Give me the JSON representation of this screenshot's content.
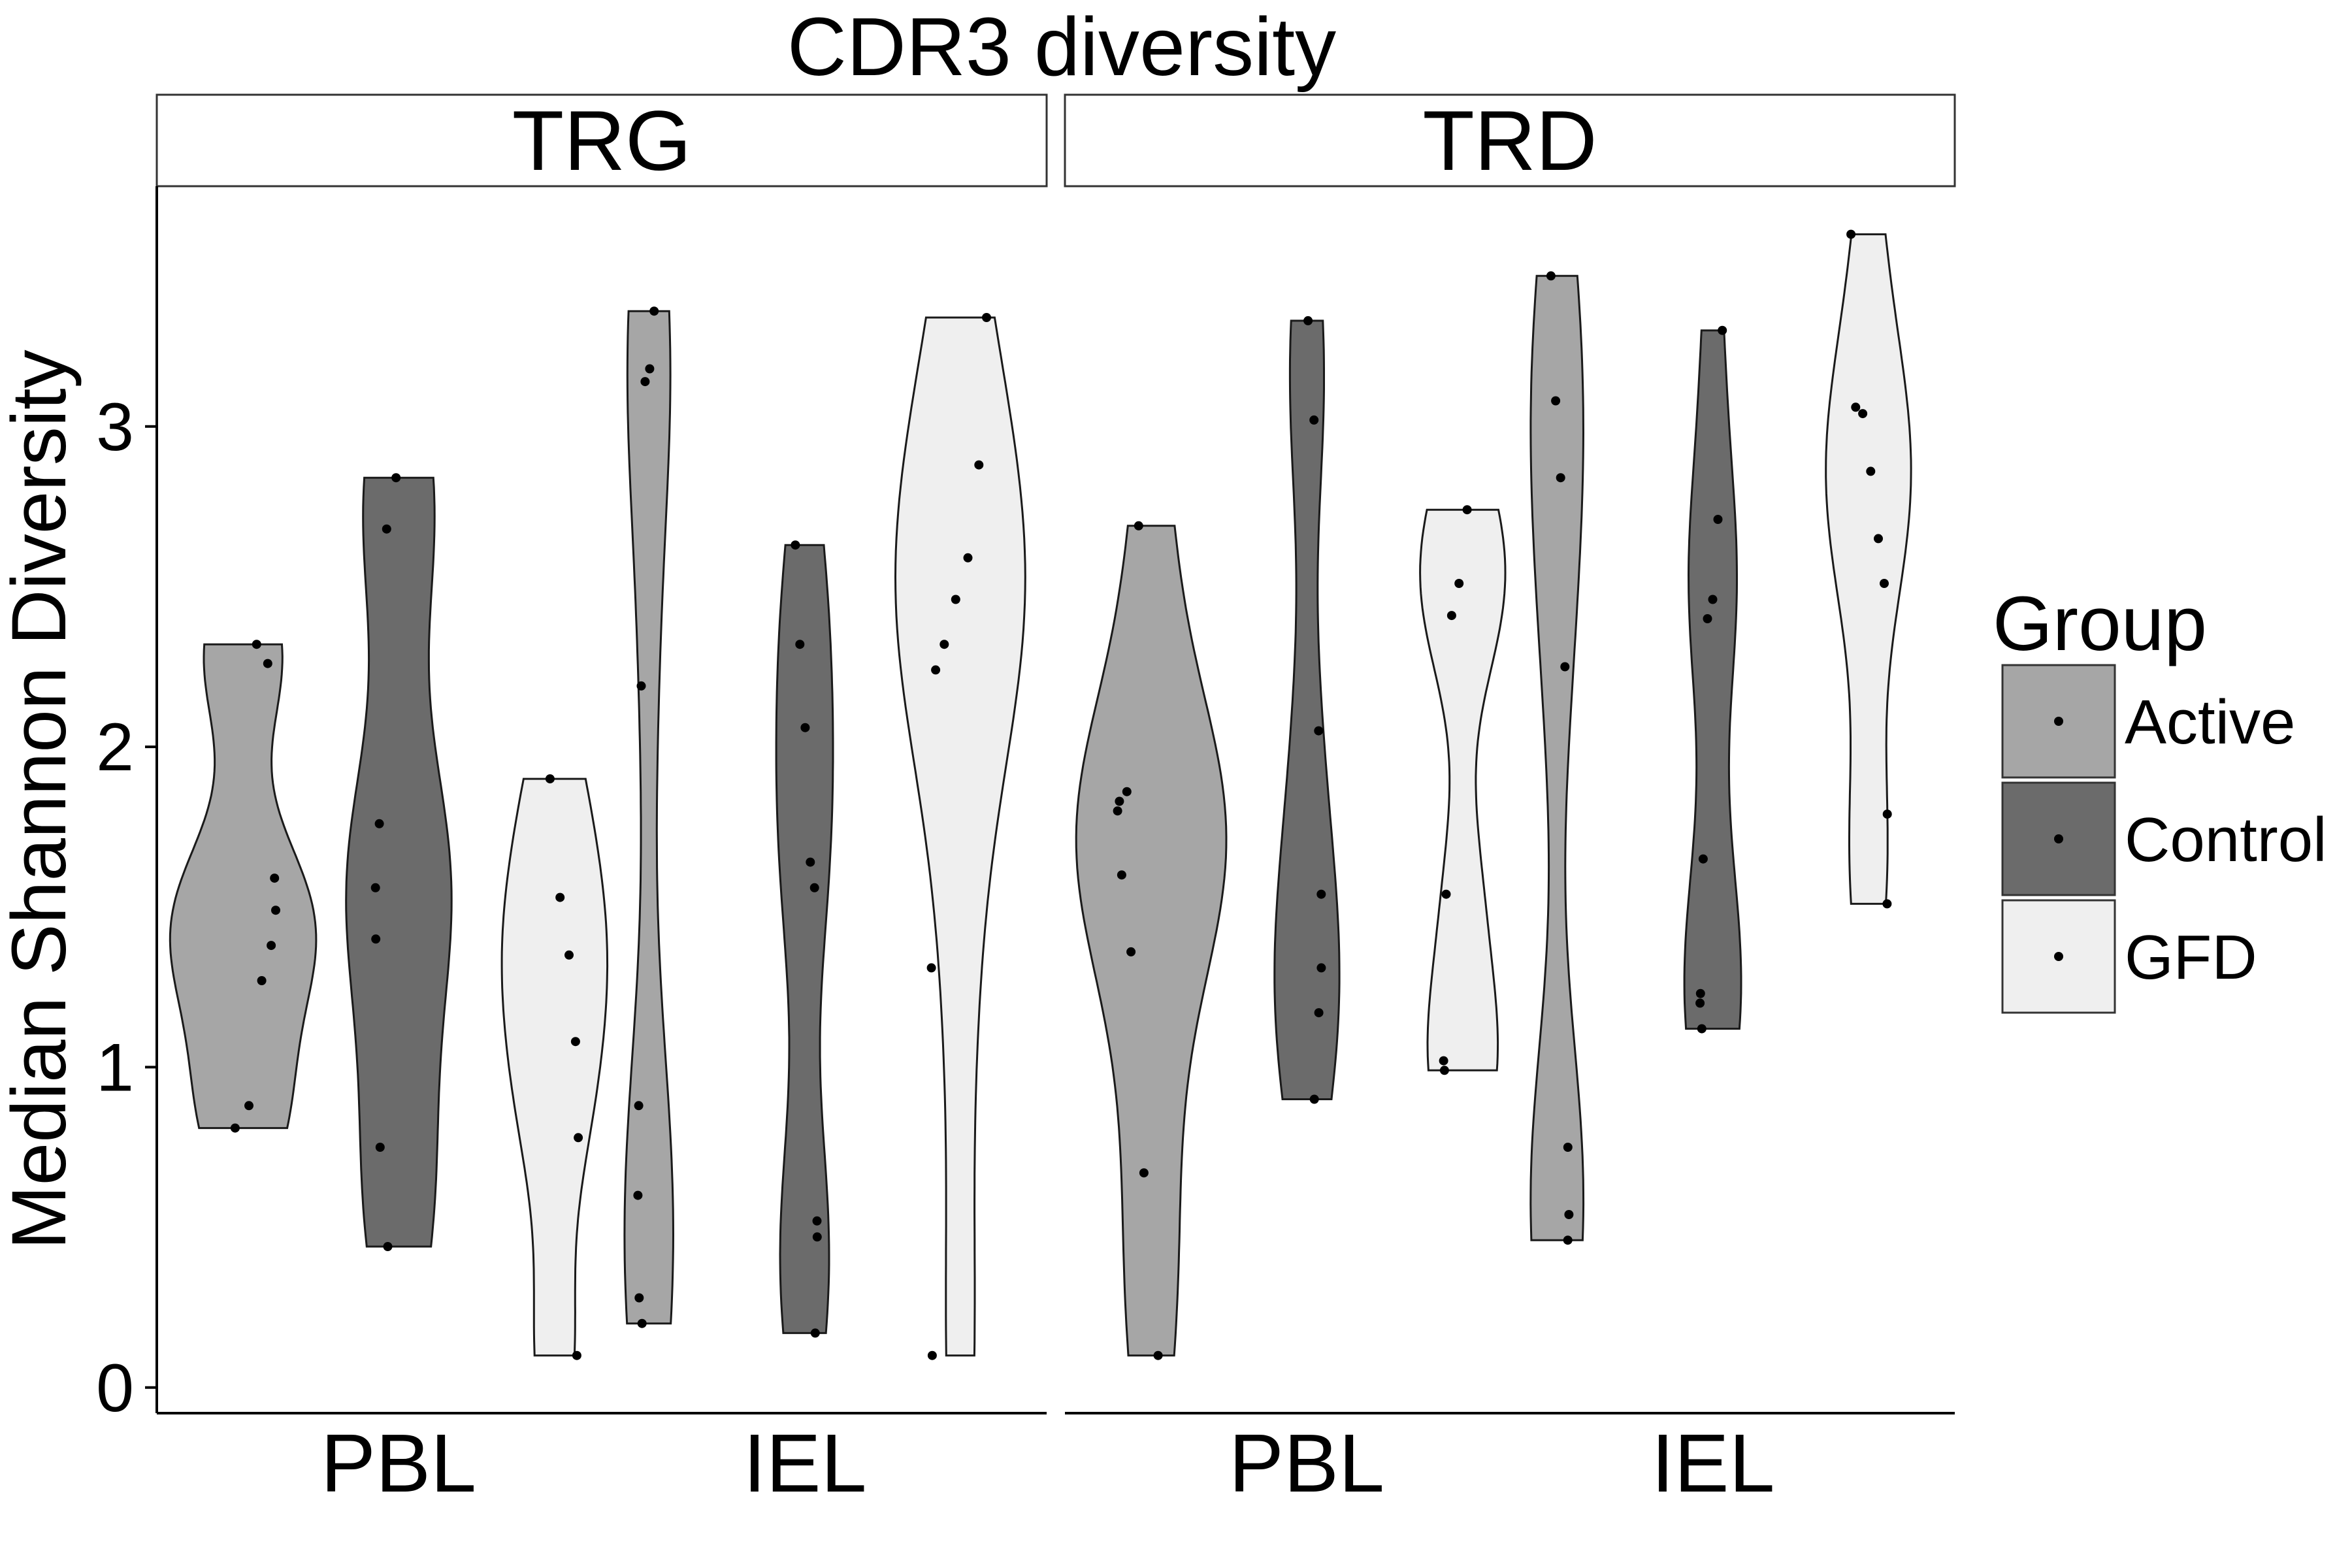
{
  "chart_data": {
    "type": "violin",
    "title": "CDR3 diversity",
    "ylabel": "Median Shannon Diversity",
    "xlabel": "",
    "ylim": [
      -0.08,
      3.75
    ],
    "yticks": [
      "0",
      "1",
      "2",
      "3"
    ],
    "categories": [
      "PBL",
      "IEL"
    ],
    "grid": false,
    "legend": {
      "title": "Group",
      "position": "right",
      "entries": [
        {
          "name": "Active",
          "color": "#a6a6a6"
        },
        {
          "name": "Control",
          "color": "#6b6b6b"
        },
        {
          "name": "GFD",
          "color": "#efefef"
        }
      ]
    },
    "panels": [
      {
        "label": "TRG",
        "groups": [
          {
            "category": "PBL",
            "group": "Active",
            "min": 0.81,
            "max": 2.32,
            "max_half_width": 0.36,
            "points": [
              2.32,
              2.26,
              1.59,
              1.49,
              1.38,
              1.27,
              0.88,
              0.81
            ]
          },
          {
            "category": "PBL",
            "group": "Control",
            "min": 0.44,
            "max": 2.84,
            "max_half_width": 0.26,
            "points": [
              2.84,
              2.68,
              1.76,
              1.56,
              1.4,
              0.75,
              0.44
            ]
          },
          {
            "category": "PBL",
            "group": "GFD",
            "min": 0.1,
            "max": 1.9,
            "max_half_width": 0.26,
            "points": [
              1.9,
              1.53,
              1.35,
              1.08,
              0.78,
              0.1
            ]
          },
          {
            "category": "IEL",
            "group": "Active",
            "min": 0.2,
            "max": 3.36,
            "max_half_width": 0.12,
            "points": [
              3.36,
              3.18,
              3.14,
              2.19,
              0.88,
              0.6,
              0.28,
              0.2
            ]
          },
          {
            "category": "IEL",
            "group": "Control",
            "min": 0.17,
            "max": 2.63,
            "max_half_width": 0.14,
            "points": [
              2.63,
              2.32,
              2.06,
              1.64,
              1.56,
              0.52,
              0.47,
              0.17
            ]
          },
          {
            "category": "IEL",
            "group": "GFD",
            "min": 0.1,
            "max": 3.34,
            "max_half_width": 0.32,
            "points": [
              3.34,
              2.88,
              2.59,
              2.46,
              2.32,
              2.24,
              1.31,
              0.1
            ]
          }
        ]
      },
      {
        "label": "TRD",
        "groups": [
          {
            "category": "PBL",
            "group": "Active",
            "min": 0.1,
            "max": 2.69,
            "max_half_width": 0.37,
            "points": [
              2.69,
              1.86,
              1.83,
              1.8,
              1.6,
              1.36,
              0.67,
              0.1
            ]
          },
          {
            "category": "PBL",
            "group": "Control",
            "min": 0.9,
            "max": 3.33,
            "max_half_width": 0.16,
            "points": [
              3.33,
              3.02,
              2.05,
              1.54,
              1.31,
              1.17,
              0.9
            ]
          },
          {
            "category": "PBL",
            "group": "GFD",
            "min": 0.99,
            "max": 2.74,
            "max_half_width": 0.21,
            "points": [
              2.74,
              2.51,
              2.41,
              1.54,
              1.02,
              0.99
            ]
          },
          {
            "category": "IEL",
            "group": "Active",
            "min": 0.46,
            "max": 3.47,
            "max_half_width": 0.13,
            "points": [
              3.47,
              3.08,
              2.84,
              2.25,
              0.75,
              0.54,
              0.46
            ]
          },
          {
            "category": "IEL",
            "group": "Control",
            "min": 1.12,
            "max": 3.3,
            "max_half_width": 0.14,
            "points": [
              3.3,
              2.71,
              2.46,
              2.4,
              1.65,
              1.23,
              1.2,
              1.12
            ]
          },
          {
            "category": "IEL",
            "group": "GFD",
            "min": 1.51,
            "max": 3.6,
            "max_half_width": 0.21,
            "points": [
              3.6,
              3.06,
              3.04,
              2.86,
              2.65,
              2.51,
              1.79,
              1.51
            ]
          }
        ]
      }
    ]
  }
}
